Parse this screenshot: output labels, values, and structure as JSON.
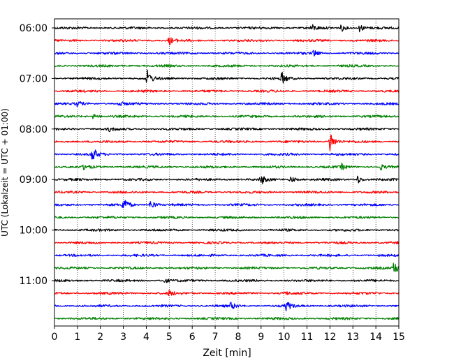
{
  "chart_data": {
    "type": "line",
    "title": "",
    "xlabel": "Zeit  [min]",
    "ylabel": "UTC (Lokalzeit = UTC + 01:00)",
    "xlim": [
      0,
      15
    ],
    "x_ticks": [
      "0",
      "1",
      "2",
      "3",
      "4",
      "5",
      "6",
      "7",
      "8",
      "9",
      "10",
      "11",
      "12",
      "13",
      "14",
      "15"
    ],
    "y_tick_labels": [
      "06:00",
      "07:00",
      "08:00",
      "09:00",
      "10:00",
      "11:00"
    ],
    "grid": "vertical dotted",
    "trace_interval_minutes": 15,
    "colors": [
      "#000000",
      "#ff0000",
      "#0000ff",
      "#008000"
    ],
    "traces": [
      {
        "label": "06:00",
        "color": "#000000",
        "events": [
          [
            11.2,
            5
          ],
          [
            12.5,
            5
          ],
          [
            13.3,
            6
          ]
        ]
      },
      {
        "label": "06:15",
        "color": "#ff0000",
        "events": [
          [
            5.0,
            6
          ]
        ]
      },
      {
        "label": "06:30",
        "color": "#0000ff",
        "events": [
          [
            11.3,
            5
          ]
        ]
      },
      {
        "label": "06:45",
        "color": "#008000",
        "events": []
      },
      {
        "label": "07:00",
        "color": "#000000",
        "events": [
          [
            4.05,
            11
          ],
          [
            9.9,
            9
          ]
        ]
      },
      {
        "label": "07:15",
        "color": "#ff0000",
        "events": []
      },
      {
        "label": "07:30",
        "color": "#0000ff",
        "events": [
          [
            1.0,
            4
          ],
          [
            2.8,
            4
          ]
        ]
      },
      {
        "label": "07:45",
        "color": "#008000",
        "events": [
          [
            1.7,
            4
          ]
        ]
      },
      {
        "label": "08:00",
        "color": "#000000",
        "events": [
          [
            2.4,
            3
          ]
        ]
      },
      {
        "label": "08:15",
        "color": "#ff0000",
        "events": [
          [
            12.0,
            17
          ]
        ]
      },
      {
        "label": "08:30",
        "color": "#0000ff",
        "events": [
          [
            1.65,
            11
          ]
        ]
      },
      {
        "label": "08:45",
        "color": "#008000",
        "events": [
          [
            1.3,
            4
          ],
          [
            12.5,
            4
          ],
          [
            14.2,
            4
          ]
        ]
      },
      {
        "label": "09:00",
        "color": "#000000",
        "events": [
          [
            9.0,
            7
          ],
          [
            10.3,
            5
          ],
          [
            13.2,
            6
          ]
        ]
      },
      {
        "label": "09:15",
        "color": "#ff0000",
        "events": []
      },
      {
        "label": "09:30",
        "color": "#0000ff",
        "events": [
          [
            3.0,
            13
          ],
          [
            4.2,
            8
          ]
        ]
      },
      {
        "label": "09:45",
        "color": "#008000",
        "events": []
      },
      {
        "label": "10:00",
        "color": "#000000",
        "events": []
      },
      {
        "label": "10:15",
        "color": "#ff0000",
        "events": []
      },
      {
        "label": "10:30",
        "color": "#0000ff",
        "events": []
      },
      {
        "label": "10:45",
        "color": "#008000",
        "events": [
          [
            14.8,
            11
          ]
        ]
      },
      {
        "label": "11:00",
        "color": "#000000",
        "events": [
          [
            4.8,
            3
          ]
        ]
      },
      {
        "label": "11:15",
        "color": "#ff0000",
        "events": [
          [
            5.0,
            4
          ],
          [
            10.0,
            3
          ]
        ]
      },
      {
        "label": "11:30",
        "color": "#0000ff",
        "events": [
          [
            7.7,
            5
          ],
          [
            10.1,
            7
          ]
        ]
      },
      {
        "label": "11:45",
        "color": "#008000",
        "events": []
      }
    ]
  }
}
